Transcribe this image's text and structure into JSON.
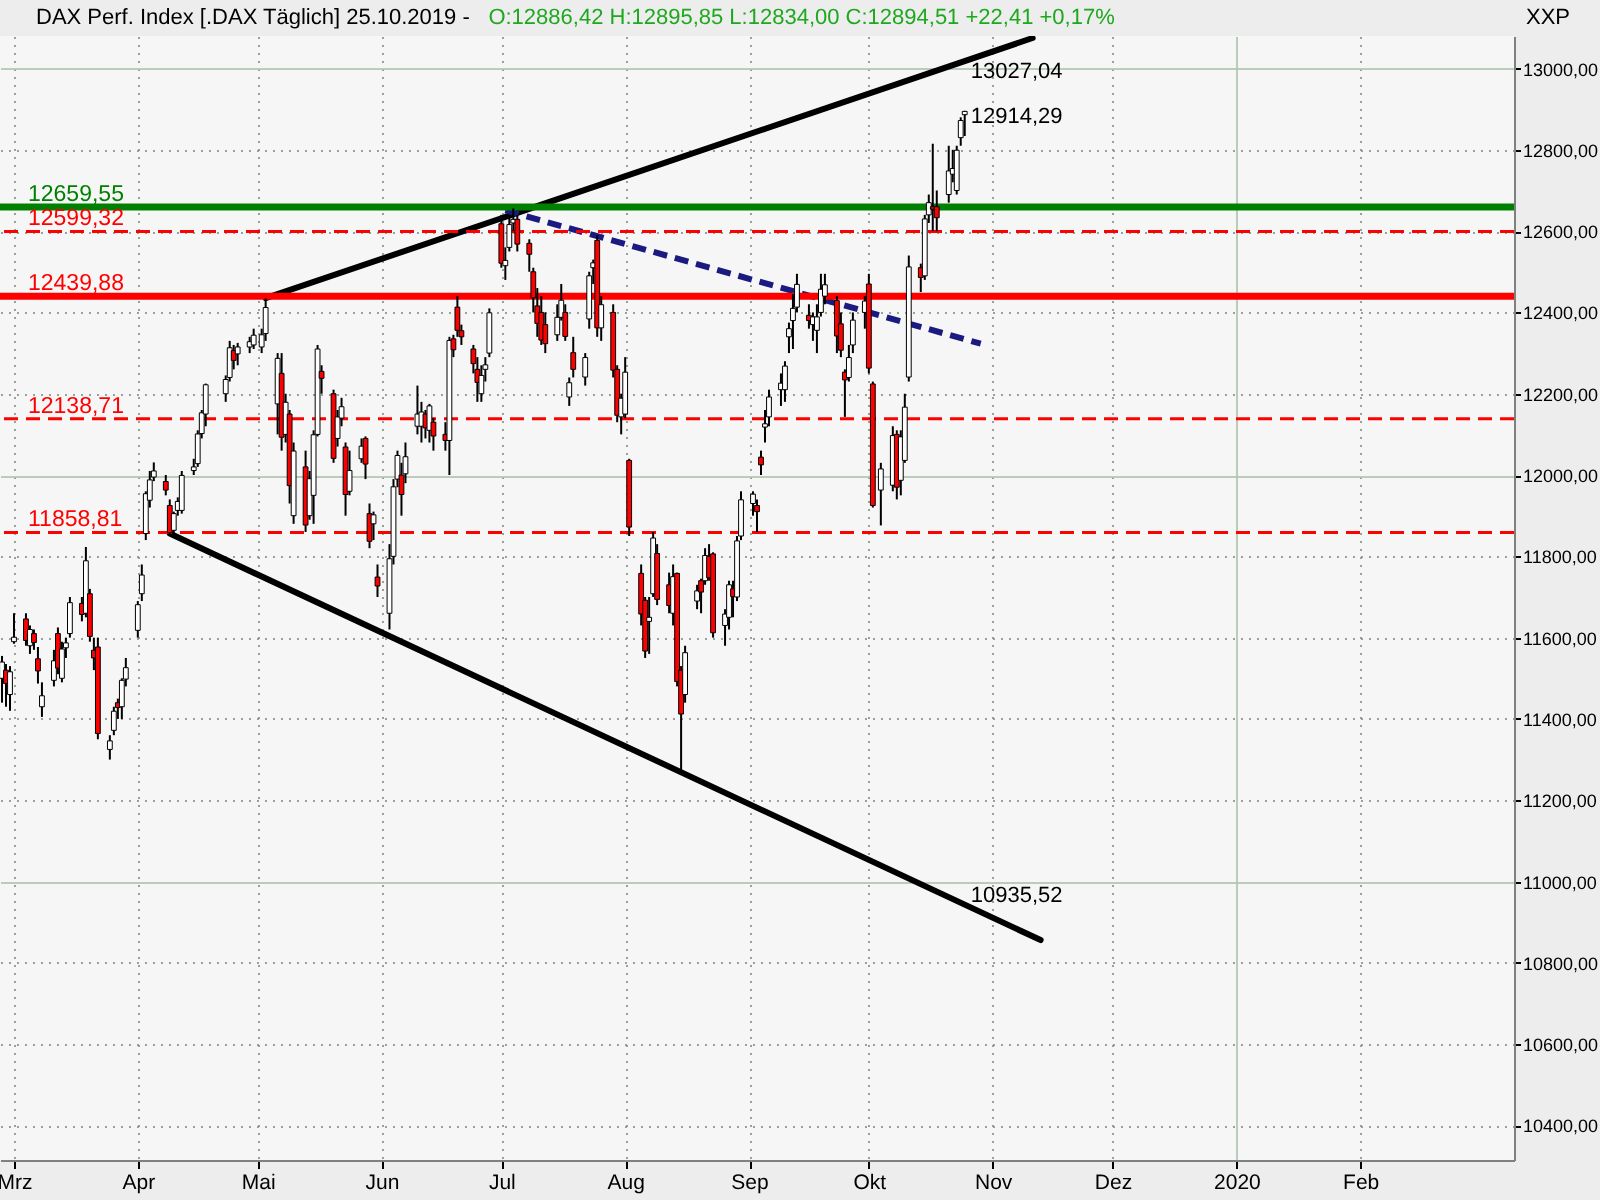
{
  "chart_data": {
    "type": "candlestick",
    "title": "DAX Perf. Index [.DAX  Täglich] 25.10.2019 -",
    "subtitle": "O:12886,42 H:12895,85 L:12834,00 C:12894,51 +22,41 +0,17%",
    "ylabel": "XXP",
    "x": [
      "2019-02-26",
      "2019-02-27",
      "2019-02-28",
      "2019-03-01",
      "2019-03-04",
      "2019-03-05",
      "2019-03-06",
      "2019-03-07",
      "2019-03-08",
      "2019-03-11",
      "2019-03-12",
      "2019-03-13",
      "2019-03-14",
      "2019-03-15",
      "2019-03-18",
      "2019-03-19",
      "2019-03-20",
      "2019-03-21",
      "2019-03-22",
      "2019-03-25",
      "2019-03-26",
      "2019-03-27",
      "2019-03-28",
      "2019-03-29",
      "2019-04-01",
      "2019-04-02",
      "2019-04-03",
      "2019-04-04",
      "2019-04-05",
      "2019-04-08",
      "2019-04-09",
      "2019-04-10",
      "2019-04-11",
      "2019-04-12",
      "2019-04-15",
      "2019-04-16",
      "2019-04-17",
      "2019-04-18",
      "2019-04-23",
      "2019-04-24",
      "2019-04-25",
      "2019-04-26",
      "2019-04-29",
      "2019-04-30",
      "2019-05-02",
      "2019-05-03",
      "2019-05-06",
      "2019-05-07",
      "2019-05-08",
      "2019-05-09",
      "2019-05-10",
      "2019-05-13",
      "2019-05-14",
      "2019-05-15",
      "2019-05-16",
      "2019-05-17",
      "2019-05-20",
      "2019-05-21",
      "2019-05-22",
      "2019-05-23",
      "2019-05-24",
      "2019-05-27",
      "2019-05-28",
      "2019-05-29",
      "2019-05-30",
      "2019-05-31",
      "2019-06-03",
      "2019-06-04",
      "2019-06-05",
      "2019-06-06",
      "2019-06-07",
      "2019-06-10",
      "2019-06-11",
      "2019-06-12",
      "2019-06-13",
      "2019-06-14",
      "2019-06-17",
      "2019-06-18",
      "2019-06-19",
      "2019-06-20",
      "2019-06-21",
      "2019-06-24",
      "2019-06-25",
      "2019-06-26",
      "2019-06-27",
      "2019-06-28",
      "2019-07-01",
      "2019-07-02",
      "2019-07-03",
      "2019-07-04",
      "2019-07-05",
      "2019-07-08",
      "2019-07-09",
      "2019-07-10",
      "2019-07-11",
      "2019-07-12",
      "2019-07-15",
      "2019-07-16",
      "2019-07-17",
      "2019-07-18",
      "2019-07-19",
      "2019-07-22",
      "2019-07-23",
      "2019-07-24",
      "2019-07-25",
      "2019-07-26",
      "2019-07-29",
      "2019-07-30",
      "2019-07-31",
      "2019-08-01",
      "2019-08-02",
      "2019-08-05",
      "2019-08-06",
      "2019-08-07",
      "2019-08-08",
      "2019-08-09",
      "2019-08-12",
      "2019-08-13",
      "2019-08-14",
      "2019-08-15",
      "2019-08-16",
      "2019-08-19",
      "2019-08-20",
      "2019-08-21",
      "2019-08-22",
      "2019-08-23",
      "2019-08-26",
      "2019-08-27",
      "2019-08-28",
      "2019-08-29",
      "2019-08-30",
      "2019-09-02",
      "2019-09-03",
      "2019-09-04",
      "2019-09-05",
      "2019-09-06",
      "2019-09-09",
      "2019-09-10",
      "2019-09-11",
      "2019-09-12",
      "2019-09-13",
      "2019-09-16",
      "2019-09-17",
      "2019-09-18",
      "2019-09-19",
      "2019-09-20",
      "2019-09-23",
      "2019-09-24",
      "2019-09-25",
      "2019-09-26",
      "2019-09-27",
      "2019-09-30",
      "2019-10-01",
      "2019-10-02",
      "2019-10-04",
      "2019-10-07",
      "2019-10-08",
      "2019-10-09",
      "2019-10-10",
      "2019-10-11",
      "2019-10-14",
      "2019-10-15",
      "2019-10-16",
      "2019-10-17",
      "2019-10-18",
      "2019-10-21",
      "2019-10-22",
      "2019-10-23",
      "2019-10-24",
      "2019-10-25"
    ],
    "ohlc": [
      [
        11500,
        11555,
        11440,
        11540
      ],
      [
        11520,
        11535,
        11430,
        11487
      ],
      [
        11460,
        11530,
        11420,
        11516
      ],
      [
        11590,
        11660,
        11585,
        11601
      ],
      [
        11646,
        11660,
        11580,
        11593
      ],
      [
        11580,
        11630,
        11560,
        11620
      ],
      [
        11610,
        11620,
        11570,
        11588
      ],
      [
        11548,
        11577,
        11487,
        11518
      ],
      [
        11430,
        11490,
        11405,
        11457
      ],
      [
        11495,
        11570,
        11480,
        11543
      ],
      [
        11610,
        11625,
        11510,
        11525
      ],
      [
        11500,
        11590,
        11490,
        11572
      ],
      [
        11575,
        11600,
        11550,
        11587
      ],
      [
        11610,
        11700,
        11600,
        11686
      ],
      [
        11684,
        11700,
        11640,
        11657
      ],
      [
        11660,
        11823,
        11650,
        11789
      ],
      [
        11708,
        11720,
        11590,
        11603
      ],
      [
        11569,
        11600,
        11520,
        11550
      ],
      [
        11577,
        11600,
        11350,
        11364
      ],
      [
        11325,
        11360,
        11300,
        11346
      ],
      [
        11372,
        11430,
        11360,
        11419
      ],
      [
        11440,
        11450,
        11400,
        11428
      ],
      [
        11430,
        11500,
        11400,
        11495
      ],
      [
        11498,
        11550,
        11480,
        11526
      ],
      [
        11618,
        11690,
        11600,
        11681
      ],
      [
        11708,
        11780,
        11690,
        11754
      ],
      [
        11856,
        11960,
        11840,
        11954
      ],
      [
        11938,
        12010,
        11920,
        11988
      ],
      [
        11995,
        12031,
        11985,
        12010
      ],
      [
        11984,
        12000,
        11950,
        11963
      ],
      [
        11925,
        11940,
        11850,
        11858
      ],
      [
        11864,
        11910,
        11850,
        11905
      ],
      [
        11913,
        11945,
        11900,
        11935
      ],
      [
        11913,
        12010,
        11905,
        11999
      ],
      [
        12011,
        12040,
        12000,
        12020
      ],
      [
        12028,
        12110,
        12020,
        12101
      ],
      [
        12102,
        12160,
        12090,
        12153
      ],
      [
        12150,
        12225,
        12120,
        12222
      ],
      [
        12200,
        12245,
        12180,
        12235
      ],
      [
        12240,
        12330,
        12230,
        12313
      ],
      [
        12306,
        12320,
        12260,
        12282
      ],
      [
        12298,
        12325,
        12270,
        12315
      ],
      [
        12315,
        12340,
        12300,
        12328
      ],
      [
        12320,
        12360,
        12310,
        12344
      ],
      [
        12315,
        12360,
        12300,
        12345
      ],
      [
        12348,
        12435,
        12330,
        12412
      ],
      [
        12175,
        12300,
        12100,
        12287
      ],
      [
        12250,
        12300,
        12060,
        12093
      ],
      [
        12100,
        12200,
        12080,
        12179
      ],
      [
        12150,
        12160,
        11930,
        11974
      ],
      [
        11900,
        12080,
        11880,
        12059
      ],
      [
        12020,
        12060,
        11860,
        11877
      ],
      [
        11900,
        12010,
        11890,
        11991
      ],
      [
        11950,
        12110,
        11880,
        12099
      ],
      [
        12100,
        12320,
        12095,
        12310
      ],
      [
        12255,
        12270,
        12200,
        12238
      ],
      [
        12200,
        12210,
        12030,
        12041
      ],
      [
        12090,
        12160,
        12070,
        12143
      ],
      [
        12140,
        12190,
        12120,
        12168
      ],
      [
        12069,
        12080,
        11900,
        11952
      ],
      [
        11960,
        12060,
        11950,
        12011
      ],
      [
        12040,
        12090,
        12030,
        12071
      ],
      [
        12090,
        12095,
        11990,
        12027
      ],
      [
        11905,
        11930,
        11820,
        11837
      ],
      [
        11880,
        11910,
        11840,
        11902
      ],
      [
        11749,
        11780,
        11700,
        11727
      ],
      [
        11660,
        11830,
        11620,
        11794
      ],
      [
        11800,
        11990,
        11780,
        11971
      ],
      [
        11990,
        12060,
        11970,
        12048
      ],
      [
        12000,
        12030,
        11900,
        11952
      ],
      [
        12003,
        12080,
        11980,
        12045
      ],
      [
        12120,
        12220,
        12100,
        12150
      ],
      [
        12120,
        12180,
        12080,
        12155
      ],
      [
        12150,
        12160,
        12090,
        12116
      ],
      [
        12110,
        12175,
        12080,
        12170
      ],
      [
        12130,
        12140,
        12060,
        12096
      ],
      [
        12100,
        12130,
        12060,
        12085
      ],
      [
        12085,
        12340,
        12000,
        12331
      ],
      [
        12335,
        12345,
        12290,
        12308
      ],
      [
        12413,
        12440,
        12340,
        12356
      ],
      [
        12355,
        12370,
        12320,
        12340
      ],
      [
        12310,
        12320,
        12250,
        12274
      ],
      [
        12260,
        12290,
        12180,
        12228
      ],
      [
        12200,
        12270,
        12180,
        12245
      ],
      [
        12260,
        12290,
        12230,
        12271
      ],
      [
        12300,
        12410,
        12290,
        12399
      ],
      [
        12618,
        12640,
        12510,
        12521
      ],
      [
        12515,
        12560,
        12480,
        12528
      ],
      [
        12560,
        12640,
        12550,
        12616
      ],
      [
        12620,
        12656,
        12600,
        12629
      ],
      [
        12629,
        12640,
        12550,
        12568
      ],
      [
        12570,
        12580,
        12500,
        12543
      ],
      [
        12500,
        12510,
        12400,
        12436
      ],
      [
        12416,
        12460,
        12340,
        12373
      ],
      [
        12400,
        12440,
        12320,
        12332
      ],
      [
        12370,
        12400,
        12300,
        12323
      ],
      [
        12345,
        12420,
        12330,
        12388
      ],
      [
        12388,
        12470,
        12380,
        12430
      ],
      [
        12400,
        12420,
        12330,
        12341
      ],
      [
        12192,
        12240,
        12170,
        12227
      ],
      [
        12301,
        12340,
        12240,
        12260
      ],
      [
        12241,
        12300,
        12220,
        12289
      ],
      [
        12384,
        12500,
        12360,
        12490
      ],
      [
        12510,
        12530,
        12470,
        12522
      ],
      [
        12577,
        12590,
        12340,
        12362
      ],
      [
        12362,
        12440,
        12330,
        12419
      ],
      [
        12400,
        12420,
        12240,
        12258
      ],
      [
        12260,
        12270,
        12130,
        12147
      ],
      [
        12143,
        12200,
        12100,
        12189
      ],
      [
        12150,
        12290,
        12140,
        12253
      ],
      [
        12036,
        12040,
        11850,
        11872
      ],
      [
        11758,
        11780,
        11630,
        11658
      ],
      [
        11692,
        11700,
        11550,
        11567
      ],
      [
        11640,
        11700,
        11560,
        11650
      ],
      [
        11708,
        11860,
        11700,
        11845
      ],
      [
        11807,
        11830,
        11680,
        11694
      ],
      [
        11730,
        11760,
        11660,
        11679
      ],
      [
        11660,
        11780,
        11630,
        11750
      ],
      [
        11758,
        11760,
        11480,
        11492
      ],
      [
        11520,
        11530,
        11266,
        11412
      ],
      [
        11460,
        11580,
        11440,
        11563
      ],
      [
        11690,
        11730,
        11670,
        11715
      ],
      [
        11740,
        11745,
        11660,
        11712
      ],
      [
        11740,
        11820,
        11730,
        11802
      ],
      [
        11800,
        11830,
        11740,
        11747
      ],
      [
        11806,
        11810,
        11600,
        11612
      ],
      [
        11630,
        11670,
        11580,
        11658
      ],
      [
        11650,
        11740,
        11620,
        11730
      ],
      [
        11720,
        11740,
        11650,
        11701
      ],
      [
        11700,
        11850,
        11690,
        11838
      ],
      [
        11850,
        11960,
        11840,
        11939
      ],
      [
        11930,
        11960,
        11900,
        11953
      ],
      [
        11925,
        11940,
        11860,
        11910
      ],
      [
        12044,
        12060,
        12000,
        12025
      ],
      [
        12118,
        12160,
        12080,
        12126
      ],
      [
        12143,
        12210,
        12120,
        12192
      ],
      [
        12210,
        12250,
        12170,
        12226
      ],
      [
        12210,
        12280,
        12180,
        12268
      ],
      [
        12340,
        12375,
        12300,
        12360
      ],
      [
        12380,
        12445,
        12310,
        12410
      ],
      [
        12413,
        12495,
        12400,
        12469
      ],
      [
        12393,
        12420,
        12360,
        12380
      ],
      [
        12370,
        12400,
        12330,
        12389
      ],
      [
        12356,
        12420,
        12300,
        12389
      ],
      [
        12400,
        12495,
        12390,
        12457
      ],
      [
        12440,
        12495,
        12420,
        12468
      ],
      [
        12429,
        12440,
        12300,
        12342
      ],
      [
        12372,
        12400,
        12290,
        12307
      ],
      [
        12253,
        12260,
        12143,
        12234
      ],
      [
        12240,
        12320,
        12230,
        12289
      ],
      [
        12320,
        12400,
        12300,
        12381
      ],
      [
        12400,
        12440,
        12360,
        12428
      ],
      [
        12470,
        12495,
        12250,
        12263
      ],
      [
        12224,
        12230,
        11920,
        11925
      ],
      [
        11963,
        12030,
        11876,
        12015
      ],
      [
        11975,
        12120,
        11960,
        12097
      ],
      [
        12100,
        12110,
        11940,
        11970
      ],
      [
        11987,
        12110,
        11950,
        12094
      ],
      [
        12036,
        12200,
        12030,
        12167
      ],
      [
        12241,
        12540,
        12230,
        12512
      ],
      [
        12510,
        12520,
        12450,
        12486
      ],
      [
        12490,
        12640,
        12480,
        12630
      ],
      [
        12640,
        12690,
        12620,
        12670
      ],
      [
        12660,
        12815,
        12600,
        12654
      ],
      [
        12660,
        12700,
        12600,
        12633
      ],
      [
        12690,
        12810,
        12670,
        12748
      ],
      [
        12740,
        12800,
        12720,
        12754
      ],
      [
        12700,
        12810,
        12690,
        12799
      ],
      [
        12830,
        12880,
        12810,
        12872
      ],
      [
        12886.42,
        12895.85,
        12834,
        12894.51
      ]
    ],
    "colors": [
      "#ffffff",
      "#ff0000",
      "#ffffff",
      "#ffffff",
      "#ff0000",
      "#ffffff",
      "#ff0000",
      "#ff0000",
      "#ffffff",
      "#ffffff",
      "#ff0000",
      "#ffffff",
      "#ffffff",
      "#ffffff",
      "#ff0000",
      "#ffffff",
      "#ff0000",
      "#ff0000",
      "#ff0000",
      "#ffffff",
      "#ffffff",
      "#ff0000",
      "#ffffff",
      "#ffffff",
      "#ffffff",
      "#ffffff",
      "#ffffff",
      "#ffffff",
      "#ffffff",
      "#ff0000",
      "#ff0000",
      "#ffffff",
      "#ffffff",
      "#ffffff",
      "#ffffff",
      "#ffffff",
      "#ffffff",
      "#ffffff",
      "#ffffff",
      "#ffffff",
      "#ff0000",
      "#ffffff",
      "#ffffff",
      "#ffffff",
      "#ffffff",
      "#ffffff",
      "#ffffff",
      "#ff0000",
      "#ffffff",
      "#ff0000",
      "#ffffff",
      "#ff0000",
      "#ffffff",
      "#ffffff",
      "#ffffff",
      "#ff0000",
      "#ff0000",
      "#ffffff",
      "#ffffff",
      "#ff0000",
      "#ffffff",
      "#ffffff",
      "#ff0000",
      "#ff0000",
      "#ffffff",
      "#ff0000",
      "#ffffff",
      "#ffffff",
      "#ffffff",
      "#ff0000",
      "#ffffff",
      "#ffffff",
      "#ffffff",
      "#ff0000",
      "#ffffff",
      "#ff0000",
      "#ff0000",
      "#ffffff",
      "#ff0000",
      "#ff0000",
      "#ff0000",
      "#ff0000",
      "#ff0000",
      "#ffffff",
      "#ffffff",
      "#ffffff",
      "#ff0000",
      "#ffffff",
      "#ffffff",
      "#ffffff",
      "#ff0000",
      "#ff0000",
      "#ff0000",
      "#ff0000",
      "#ff0000",
      "#ff0000",
      "#ffffff",
      "#ffffff",
      "#ff0000",
      "#ffffff",
      "#ff0000",
      "#ffffff",
      "#ffffff",
      "#ffffff",
      "#ff0000",
      "#ffffff",
      "#ff0000",
      "#ff0000",
      "#ffffff",
      "#ffffff",
      "#ff0000",
      "#ff0000",
      "#ff0000",
      "#ffffff",
      "#ffffff",
      "#ff0000",
      "#ff0000",
      "#ffffff",
      "#ff0000",
      "#ff0000",
      "#ffffff",
      "#ffffff",
      "#ff0000",
      "#ffffff",
      "#ff0000",
      "#ff0000",
      "#ffffff",
      "#ffffff",
      "#ff0000",
      "#ffffff",
      "#ffffff",
      "#ffffff",
      "#ff0000",
      "#ff0000",
      "#ffffff",
      "#ffffff",
      "#ffffff",
      "#ffffff",
      "#ffffff",
      "#ffffff",
      "#ffffff",
      "#ff0000",
      "#ffffff",
      "#ffffff",
      "#ffffff",
      "#ffffff",
      "#ff0000",
      "#ff0000",
      "#ff0000",
      "#ffffff",
      "#ffffff",
      "#ffffff",
      "#ff0000",
      "#ff0000",
      "#ffffff",
      "#ffffff",
      "#ff0000",
      "#ffffff",
      "#ffffff",
      "#ffffff",
      "#ff0000",
      "#ffffff",
      "#ffffff",
      "#ff0000",
      "#ff0000",
      "#ffffff",
      "#ffffff",
      "#ffffff",
      "#ffffff",
      "#ffffff"
    ],
    "series": [
      {
        "type": "line",
        "x": [
          "2019-05-03",
          "2019-11-11"
        ],
        "values": [
          12435,
          13075
        ],
        "color": "#000000",
        "line_style": "solid"
      },
      {
        "type": "line",
        "x": [
          "2019-04-09",
          "2019-11-13"
        ],
        "values": [
          11856,
          10856
        ],
        "color": "#000000",
        "line_style": "solid"
      },
      {
        "type": "line",
        "x": [
          "2019-07-02",
          "2019-10-29"
        ],
        "values": [
          12651,
          12323
        ],
        "color": "#1a1a80",
        "line_style": "dashed"
      }
    ],
    "ref_lines": [
      {
        "axis": "y",
        "value": 12659.55,
        "label": "12659,55",
        "color": "#008000",
        "line_style": "solid"
      },
      {
        "axis": "y",
        "value": 12599.32,
        "label": "12599,32",
        "color": "#ff0000",
        "line_style": "dashed"
      },
      {
        "axis": "y",
        "value": 12439.88,
        "label": "12439,88",
        "color": "#ff0000",
        "line_style": "solid"
      },
      {
        "axis": "y",
        "value": 12138.71,
        "label": "12138,71",
        "color": "#ff0000",
        "line_style": "dashed"
      },
      {
        "axis": "y",
        "value": 11858.81,
        "label": "11858,81",
        "color": "#ff0000",
        "line_style": "dashed"
      }
    ],
    "annotations": [
      {
        "text": "13027,04",
        "x": "2019-10-25",
        "y": 13027.04
      },
      {
        "text": "12914,29",
        "x": "2019-10-25",
        "y": 12914.29
      },
      {
        "text": "10935,52",
        "x": "2019-10-25",
        "y": 10935.52
      }
    ],
    "xlim": [
      "2019-02-25T12:00",
      "2020-03-10T12:00"
    ],
    "xticks": [
      {
        "value": "2019-03-01",
        "label": "Mrz"
      },
      {
        "value": "2019-04-01",
        "label": "Apr"
      },
      {
        "value": "2019-05-01",
        "label": "Mai"
      },
      {
        "value": "2019-06-01",
        "label": "Jun"
      },
      {
        "value": "2019-07-01",
        "label": "Jul"
      },
      {
        "value": "2019-08-01",
        "label": "Aug"
      },
      {
        "value": "2019-09-01",
        "label": "Sep"
      },
      {
        "value": "2019-10-01",
        "label": "Okt"
      },
      {
        "value": "2019-11-01",
        "label": "Nov"
      },
      {
        "value": "2019-12-01",
        "label": "Dez"
      },
      {
        "value": "2020-01-01",
        "label": "2020"
      },
      {
        "value": "2020-02-01",
        "label": "Feb"
      }
    ],
    "ylim": [
      10315,
      13080
    ],
    "yticks": [
      {
        "value": 10400,
        "label": "10400,00"
      },
      {
        "value": 10600,
        "label": "10600,00"
      },
      {
        "value": 10800,
        "label": "10800,00"
      },
      {
        "value": 11000,
        "label": "11000,00"
      },
      {
        "value": 11200,
        "label": "11200,00"
      },
      {
        "value": 11400,
        "label": "11400,00"
      },
      {
        "value": 11600,
        "label": "11600,00"
      },
      {
        "value": 11800,
        "label": "11800,00"
      },
      {
        "value": 12000,
        "label": "12000,00"
      },
      {
        "value": 12200,
        "label": "12200,00"
      },
      {
        "value": 12400,
        "label": "12400,00"
      },
      {
        "value": 12600,
        "label": "12600,00"
      },
      {
        "value": 12800,
        "label": "12800,00"
      },
      {
        "value": 13000,
        "label": "13000,00"
      }
    ],
    "grid": true
  }
}
